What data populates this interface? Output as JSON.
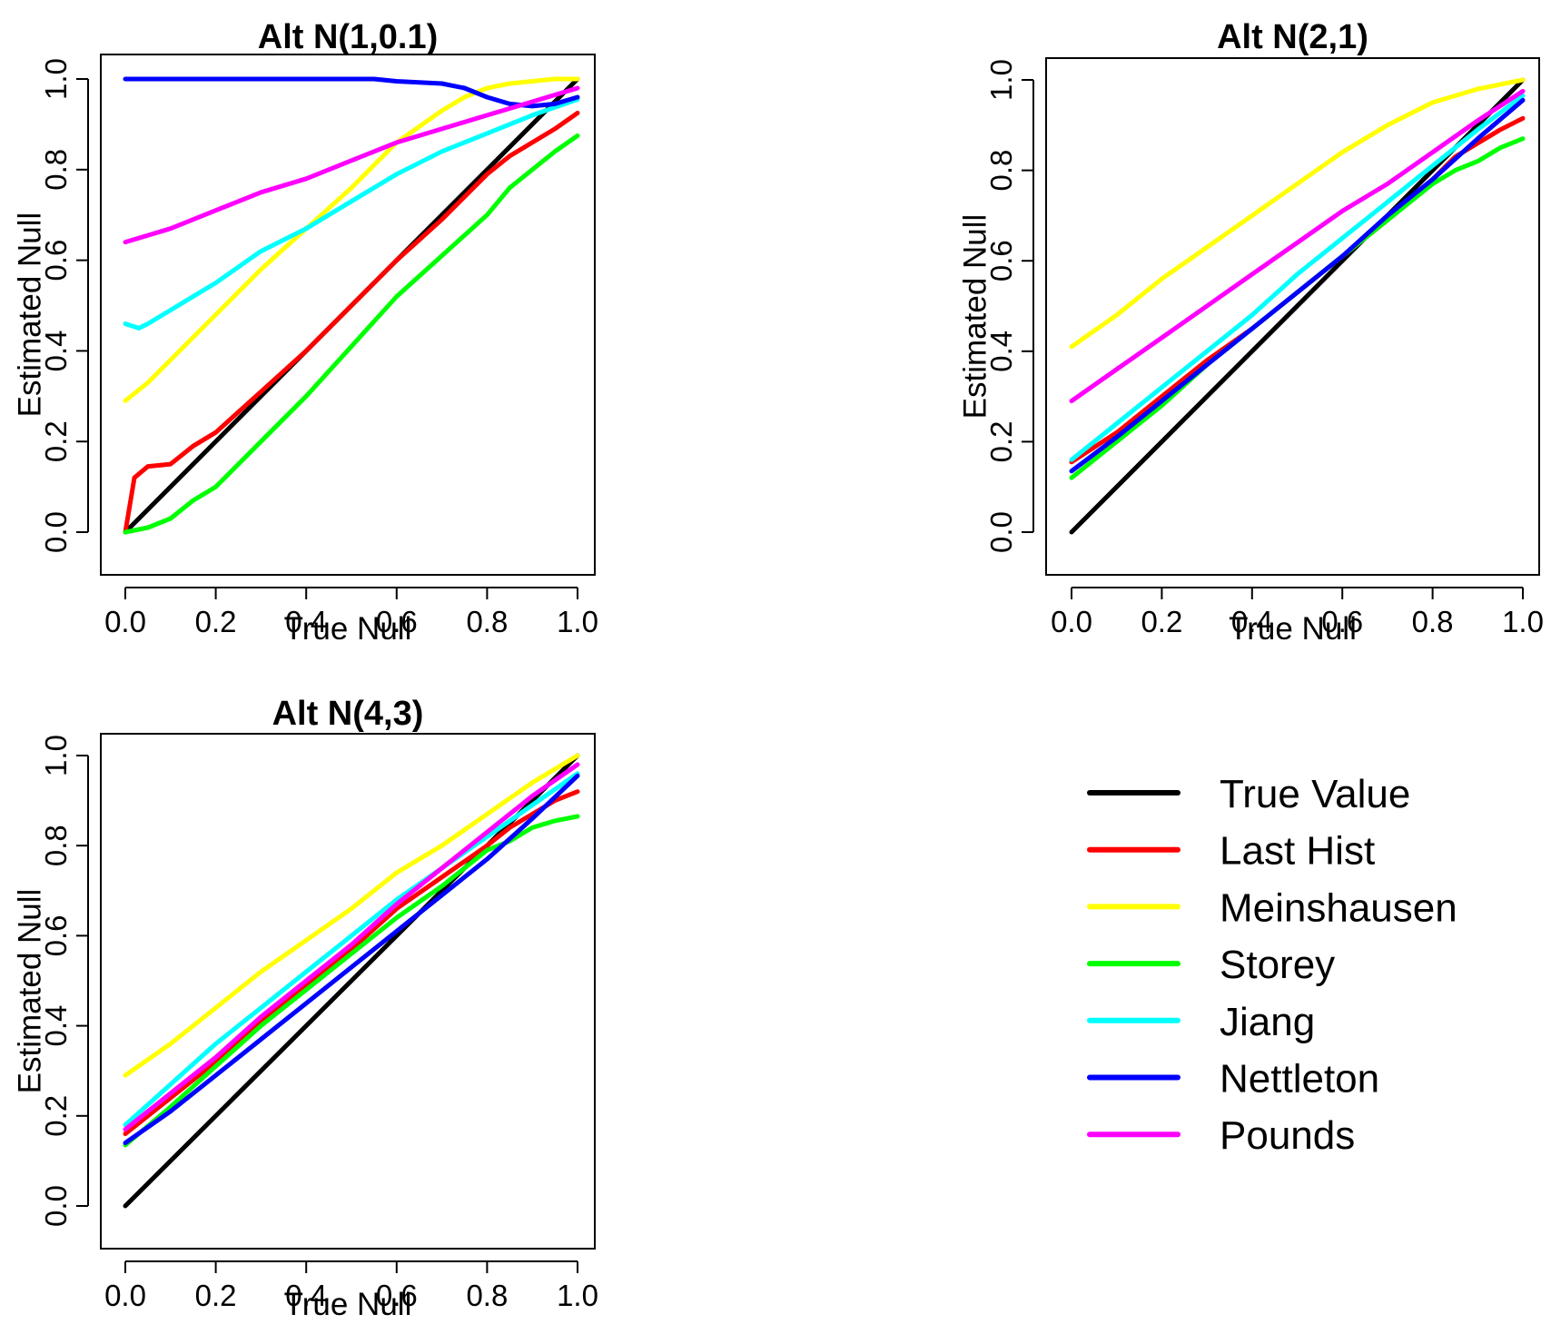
{
  "chart_data": [
    {
      "type": "line",
      "title": "Alt N(1,0.1)",
      "xlabel": "True Null",
      "ylabel": "Estimated Null",
      "xlim": [
        0,
        1
      ],
      "ylim": [
        0,
        1
      ],
      "xticks": [
        "0.0",
        "0.2",
        "0.4",
        "0.6",
        "0.8",
        "1.0"
      ],
      "yticks": [
        "0.0",
        "0.2",
        "0.4",
        "0.6",
        "0.8",
        "1.0"
      ],
      "grid": false,
      "series": [
        {
          "name": "True Value",
          "color": "#000000",
          "x": [
            0,
            1
          ],
          "y": [
            0,
            1
          ]
        },
        {
          "name": "Last Hist",
          "color": "#ff0000",
          "x": [
            0,
            0.02,
            0.05,
            0.1,
            0.15,
            0.2,
            0.3,
            0.4,
            0.5,
            0.6,
            0.7,
            0.8,
            0.85,
            0.9,
            0.95,
            1.0
          ],
          "y": [
            0,
            0.12,
            0.145,
            0.15,
            0.19,
            0.22,
            0.31,
            0.4,
            0.5,
            0.6,
            0.69,
            0.79,
            0.83,
            0.86,
            0.89,
            0.925
          ]
        },
        {
          "name": "Meinshausen",
          "color": "#ffff00",
          "x": [
            0,
            0.05,
            0.1,
            0.15,
            0.2,
            0.3,
            0.4,
            0.5,
            0.6,
            0.7,
            0.75,
            0.8,
            0.85,
            0.9,
            0.95,
            1.0
          ],
          "y": [
            0.29,
            0.33,
            0.38,
            0.43,
            0.48,
            0.58,
            0.67,
            0.76,
            0.86,
            0.93,
            0.96,
            0.98,
            0.99,
            0.995,
            1.0,
            1.0
          ]
        },
        {
          "name": "Storey",
          "color": "#00ff00",
          "x": [
            0,
            0.05,
            0.1,
            0.15,
            0.2,
            0.3,
            0.4,
            0.5,
            0.6,
            0.7,
            0.8,
            0.85,
            0.9,
            0.95,
            1.0
          ],
          "y": [
            0,
            0.01,
            0.03,
            0.07,
            0.1,
            0.2,
            0.3,
            0.41,
            0.52,
            0.61,
            0.7,
            0.76,
            0.8,
            0.84,
            0.875
          ]
        },
        {
          "name": "Jiang",
          "color": "#00ffff",
          "x": [
            0,
            0.03,
            0.05,
            0.1,
            0.2,
            0.3,
            0.4,
            0.5,
            0.6,
            0.7,
            0.8,
            0.9,
            1.0
          ],
          "y": [
            0.46,
            0.45,
            0.46,
            0.49,
            0.55,
            0.62,
            0.67,
            0.73,
            0.79,
            0.84,
            0.88,
            0.92,
            0.955
          ]
        },
        {
          "name": "Nettleton",
          "color": "#0000ff",
          "x": [
            0,
            0.1,
            0.2,
            0.3,
            0.4,
            0.5,
            0.55,
            0.6,
            0.7,
            0.75,
            0.8,
            0.85,
            0.9,
            0.95,
            1.0
          ],
          "y": [
            1.0,
            1.0,
            1.0,
            1.0,
            1.0,
            1.0,
            1.0,
            0.995,
            0.99,
            0.98,
            0.96,
            0.945,
            0.94,
            0.945,
            0.96
          ]
        },
        {
          "name": "Pounds",
          "color": "#ff00ff",
          "x": [
            0,
            0.1,
            0.2,
            0.3,
            0.4,
            0.5,
            0.6,
            0.7,
            0.8,
            0.9,
            1.0
          ],
          "y": [
            0.64,
            0.67,
            0.71,
            0.75,
            0.78,
            0.82,
            0.86,
            0.89,
            0.92,
            0.95,
            0.98
          ]
        }
      ]
    },
    {
      "type": "line",
      "title": "Alt N(2,1)",
      "xlabel": "True Null",
      "ylabel": "Estimated Null",
      "xlim": [
        0,
        1
      ],
      "ylim": [
        0,
        1
      ],
      "xticks": [
        "0.0",
        "0.2",
        "0.4",
        "0.6",
        "0.8",
        "1.0"
      ],
      "yticks": [
        "0.0",
        "0.2",
        "0.4",
        "0.6",
        "0.8",
        "1.0"
      ],
      "grid": false,
      "series": [
        {
          "name": "True Value",
          "color": "#000000",
          "x": [
            0,
            1
          ],
          "y": [
            0,
            1
          ]
        },
        {
          "name": "Last Hist",
          "color": "#ff0000",
          "x": [
            0,
            0.1,
            0.2,
            0.3,
            0.4,
            0.5,
            0.6,
            0.7,
            0.8,
            0.85,
            0.9,
            0.95,
            1.0
          ],
          "y": [
            0.155,
            0.22,
            0.3,
            0.38,
            0.45,
            0.53,
            0.61,
            0.69,
            0.78,
            0.83,
            0.86,
            0.89,
            0.915
          ]
        },
        {
          "name": "Meinshausen",
          "color": "#ffff00",
          "x": [
            0,
            0.1,
            0.2,
            0.3,
            0.4,
            0.5,
            0.6,
            0.7,
            0.8,
            0.9,
            1.0
          ],
          "y": [
            0.41,
            0.48,
            0.56,
            0.63,
            0.7,
            0.77,
            0.84,
            0.9,
            0.95,
            0.98,
            1.0
          ]
        },
        {
          "name": "Storey",
          "color": "#00ff00",
          "x": [
            0,
            0.1,
            0.2,
            0.3,
            0.4,
            0.5,
            0.6,
            0.7,
            0.8,
            0.85,
            0.9,
            0.95,
            1.0
          ],
          "y": [
            0.12,
            0.2,
            0.28,
            0.37,
            0.45,
            0.53,
            0.61,
            0.69,
            0.77,
            0.8,
            0.82,
            0.85,
            0.87
          ]
        },
        {
          "name": "Jiang",
          "color": "#00ffff",
          "x": [
            0,
            0.1,
            0.2,
            0.3,
            0.4,
            0.5,
            0.6,
            0.7,
            0.8,
            0.9,
            1.0
          ],
          "y": [
            0.16,
            0.24,
            0.32,
            0.4,
            0.48,
            0.57,
            0.65,
            0.73,
            0.81,
            0.89,
            0.965
          ]
        },
        {
          "name": "Nettleton",
          "color": "#0000ff",
          "x": [
            0,
            0.1,
            0.2,
            0.3,
            0.4,
            0.5,
            0.6,
            0.7,
            0.8,
            0.9,
            1.0
          ],
          "y": [
            0.135,
            0.21,
            0.29,
            0.37,
            0.45,
            0.53,
            0.61,
            0.7,
            0.78,
            0.87,
            0.955
          ]
        },
        {
          "name": "Pounds",
          "color": "#ff00ff",
          "x": [
            0,
            0.1,
            0.2,
            0.3,
            0.4,
            0.5,
            0.6,
            0.7,
            0.8,
            0.9,
            1.0
          ],
          "y": [
            0.29,
            0.36,
            0.43,
            0.5,
            0.57,
            0.64,
            0.71,
            0.77,
            0.84,
            0.91,
            0.975
          ]
        }
      ]
    },
    {
      "type": "line",
      "title": "Alt N(4,3)",
      "xlabel": "True Null",
      "ylabel": "Estimated Null",
      "xlim": [
        0,
        1
      ],
      "ylim": [
        0,
        1
      ],
      "xticks": [
        "0.0",
        "0.2",
        "0.4",
        "0.6",
        "0.8",
        "1.0"
      ],
      "yticks": [
        "0.0",
        "0.2",
        "0.4",
        "0.6",
        "0.8",
        "1.0"
      ],
      "grid": false,
      "series": [
        {
          "name": "True Value",
          "color": "#000000",
          "x": [
            0,
            1
          ],
          "y": [
            0,
            1
          ]
        },
        {
          "name": "Last Hist",
          "color": "#ff0000",
          "x": [
            0,
            0.1,
            0.2,
            0.3,
            0.4,
            0.5,
            0.6,
            0.7,
            0.8,
            0.85,
            0.9,
            0.95,
            1.0
          ],
          "y": [
            0.16,
            0.24,
            0.32,
            0.41,
            0.49,
            0.57,
            0.66,
            0.73,
            0.8,
            0.84,
            0.87,
            0.9,
            0.92
          ]
        },
        {
          "name": "Meinshausen",
          "color": "#ffff00",
          "x": [
            0,
            0.1,
            0.2,
            0.3,
            0.4,
            0.5,
            0.6,
            0.7,
            0.8,
            0.9,
            1.0
          ],
          "y": [
            0.29,
            0.36,
            0.44,
            0.52,
            0.59,
            0.66,
            0.74,
            0.8,
            0.87,
            0.94,
            1.0
          ]
        },
        {
          "name": "Storey",
          "color": "#00ff00",
          "x": [
            0,
            0.1,
            0.2,
            0.3,
            0.4,
            0.5,
            0.6,
            0.7,
            0.75,
            0.8,
            0.85,
            0.9,
            0.95,
            1.0
          ],
          "y": [
            0.135,
            0.22,
            0.31,
            0.4,
            0.48,
            0.56,
            0.64,
            0.71,
            0.75,
            0.79,
            0.81,
            0.84,
            0.855,
            0.865
          ]
        },
        {
          "name": "Jiang",
          "color": "#00ffff",
          "x": [
            0,
            0.1,
            0.2,
            0.3,
            0.4,
            0.5,
            0.6,
            0.7,
            0.8,
            0.9,
            1.0
          ],
          "y": [
            0.18,
            0.27,
            0.36,
            0.44,
            0.52,
            0.6,
            0.68,
            0.75,
            0.82,
            0.89,
            0.96
          ]
        },
        {
          "name": "Nettleton",
          "color": "#0000ff",
          "x": [
            0,
            0.1,
            0.2,
            0.3,
            0.4,
            0.5,
            0.6,
            0.7,
            0.8,
            0.9,
            1.0
          ],
          "y": [
            0.14,
            0.21,
            0.29,
            0.37,
            0.45,
            0.53,
            0.61,
            0.69,
            0.77,
            0.86,
            0.955
          ]
        },
        {
          "name": "Pounds",
          "color": "#ff00ff",
          "x": [
            0,
            0.1,
            0.2,
            0.3,
            0.4,
            0.5,
            0.6,
            0.7,
            0.8,
            0.9,
            1.0
          ],
          "y": [
            0.17,
            0.25,
            0.33,
            0.42,
            0.5,
            0.58,
            0.67,
            0.75,
            0.83,
            0.91,
            0.98
          ]
        }
      ]
    }
  ],
  "legend": {
    "placement": "bottom-right",
    "items": [
      {
        "label": "True Value",
        "color": "#000000"
      },
      {
        "label": "Last Hist",
        "color": "#ff0000"
      },
      {
        "label": "Meinshausen",
        "color": "#ffff00"
      },
      {
        "label": "Storey",
        "color": "#00ff00"
      },
      {
        "label": "Jiang",
        "color": "#00ffff"
      },
      {
        "label": "Nettleton",
        "color": "#0000ff"
      },
      {
        "label": "Pounds",
        "color": "#ff00ff"
      }
    ]
  }
}
